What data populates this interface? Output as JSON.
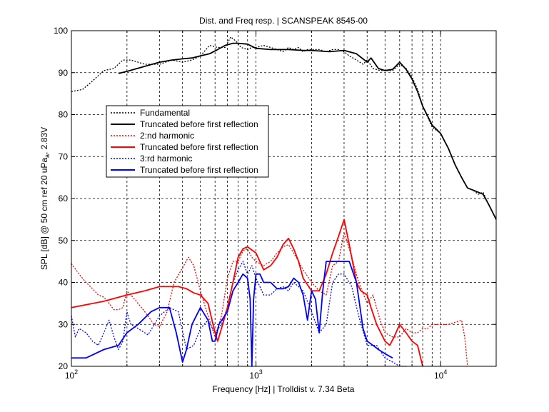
{
  "chart_data": {
    "type": "line",
    "title": "Dist. and Freq resp.  | SCANSPEAK 8545-00",
    "xlabel": "Frequency [Hz] | Trolldist v. 7.34 Beta",
    "ylabel_parts": [
      "SPL [dB] @ 50 cm ref 20 uPa",
      "a",
      ", 2.83V"
    ],
    "xscale": "log",
    "xlim": [
      100,
      20000
    ],
    "ylim": [
      20,
      100
    ],
    "grid": true,
    "legend_position": "upper-left",
    "x_tick_labels": [
      {
        "x": 100,
        "base": "10",
        "exp": "2"
      },
      {
        "x": 1000,
        "base": "10",
        "exp": "3"
      },
      {
        "x": 10000,
        "base": "10",
        "exp": "4"
      }
    ],
    "y_ticks": [
      20,
      30,
      40,
      50,
      60,
      70,
      80,
      90,
      100
    ],
    "series": [
      {
        "name": "Fundamental",
        "color": "#000000",
        "style": "dotted",
        "x": [
          100,
          115,
          130,
          150,
          170,
          190,
          210,
          250,
          300,
          350,
          400,
          450,
          500,
          560,
          620,
          680,
          730,
          780,
          830,
          900,
          950,
          1000,
          1100,
          1200,
          1300,
          1400,
          1500,
          1600,
          1700,
          1800,
          1900,
          2000,
          2200,
          2400,
          2600,
          2800,
          3000,
          3200,
          3500,
          3800,
          4000,
          4300,
          4700,
          5000,
          5500,
          6000,
          6500,
          7000,
          7500,
          8000,
          9000,
          10000,
          11000,
          12000,
          13000,
          14000,
          15000,
          16000,
          17000,
          18000,
          19000,
          20000
        ],
        "y": [
          85.5,
          86,
          88,
          90.5,
          91,
          93,
          93,
          92,
          92,
          93,
          92.5,
          93,
          94,
          96.5,
          96,
          96,
          98.5,
          97.5,
          96,
          95.5,
          96,
          96,
          96.5,
          96,
          95.5,
          95,
          96,
          95.5,
          96,
          95,
          95.5,
          95.5,
          95.5,
          95,
          95.5,
          95.5,
          95,
          94,
          93,
          92,
          93,
          91,
          90.5,
          90.5,
          90.5,
          92,
          91,
          89,
          86,
          82,
          77,
          75.5,
          72,
          68,
          65,
          62.5,
          62,
          61,
          61.5,
          59,
          57,
          55
        ]
      },
      {
        "name": "Truncated before first reflection",
        "color": "#000000",
        "style": "solid",
        "x": [
          180,
          200,
          250,
          300,
          350,
          400,
          450,
          500,
          560,
          620,
          680,
          750,
          800,
          900,
          1000,
          1200,
          1500,
          1800,
          2000,
          2500,
          3000,
          3500,
          4000,
          4200,
          4600,
          5000,
          5500,
          6000,
          6500,
          7000,
          7500,
          8000,
          9000,
          10000,
          11000,
          12000,
          13000,
          14000,
          15000,
          16000,
          17000,
          18000,
          19000,
          20000
        ],
        "y": [
          89.8,
          90.3,
          91.5,
          92.5,
          93,
          93.3,
          93.5,
          94,
          94.5,
          95.5,
          96.5,
          97,
          97,
          96.8,
          95.8,
          95.5,
          95.5,
          95.3,
          95.3,
          95,
          95.3,
          94.5,
          92.5,
          93.5,
          91,
          90.5,
          90.8,
          92.5,
          90.8,
          88.5,
          85.5,
          82,
          77.5,
          75.5,
          72,
          68,
          65,
          62.5,
          62,
          61.5,
          61,
          59,
          57,
          55
        ]
      },
      {
        "name": "2:nd harmonic",
        "color": "#ff0000",
        "style": "dotted",
        "x": [
          100,
          110,
          120,
          130,
          140,
          150,
          160,
          170,
          180,
          190,
          200,
          220,
          250,
          280,
          300,
          330,
          360,
          400,
          430,
          460,
          500,
          550,
          600,
          650,
          700,
          750,
          800,
          850,
          900,
          950,
          1000,
          1100,
          1200,
          1300,
          1400,
          1500,
          1600,
          1700,
          1800,
          2000,
          2200,
          2400,
          2600,
          2800,
          3000,
          3300,
          3600,
          4000,
          4300,
          4700,
          5000,
          5500,
          6000,
          6500,
          7000,
          7500,
          8000,
          8500,
          9000,
          10000,
          11000,
          12000,
          13000,
          13500,
          14000
        ],
        "y": [
          44.5,
          42,
          40,
          38.5,
          37,
          36.5,
          35,
          33.5,
          33.5,
          34,
          38,
          36,
          33,
          30,
          29.5,
          33,
          40,
          43.5,
          46,
          44,
          38,
          32,
          27,
          32,
          41,
          45,
          45,
          47.5,
          48,
          46,
          45,
          44,
          45,
          47,
          48.5,
          49,
          47,
          45,
          43,
          40,
          38,
          37,
          44,
          45,
          52,
          46,
          40,
          35,
          37,
          31,
          28,
          27,
          27,
          29,
          28,
          28,
          29,
          29,
          30,
          30,
          30,
          30.5,
          31,
          27,
          20
        ]
      },
      {
        "name": "Truncated before first reflection",
        "color": "#ff0000",
        "style": "solid",
        "x": [
          100,
          150,
          200,
          250,
          300,
          350,
          380,
          420,
          460,
          500,
          550,
          600,
          620,
          660,
          700,
          750,
          800,
          850,
          900,
          1000,
          1100,
          1200,
          1300,
          1400,
          1500,
          1600,
          1700,
          1800,
          2000,
          2200,
          2400,
          2600,
          2800,
          3000,
          3200,
          3500,
          3700,
          4000,
          4200,
          4500,
          5000,
          5300,
          5600,
          6000,
          6500,
          7000,
          7500,
          8000
        ],
        "y": [
          34,
          35.5,
          37,
          38,
          39,
          39,
          39,
          38.5,
          37.5,
          37,
          35,
          28,
          26,
          30,
          34,
          40,
          46,
          48,
          48.5,
          47,
          43,
          44,
          46,
          49,
          50.5,
          48,
          45,
          41,
          38,
          38,
          42,
          47,
          51,
          55,
          49,
          40,
          38,
          37,
          34,
          30,
          26,
          25,
          27,
          30,
          28,
          26,
          25,
          20
        ]
      },
      {
        "name": "3:rd harmonic",
        "color": "#0000ff",
        "style": "dotted",
        "x": [
          100,
          105,
          110,
          120,
          130,
          140,
          150,
          160,
          170,
          180,
          190,
          200,
          210,
          230,
          260,
          300,
          340,
          380,
          420,
          460,
          500,
          550,
          600,
          650,
          700,
          750,
          800,
          850,
          900,
          950,
          1000,
          1100,
          1200,
          1300,
          1400,
          1500,
          1600,
          1800,
          2000,
          2200,
          2400,
          2600,
          2800,
          3000,
          3300,
          3600,
          4000,
          4500,
          5000,
          5500,
          6000,
          6500
        ],
        "y": [
          32,
          27,
          29,
          28,
          26,
          25,
          28,
          31,
          27,
          24,
          26,
          33,
          30,
          29,
          27.5,
          32,
          34,
          33,
          24,
          25,
          29,
          31,
          28,
          30,
          34,
          40,
          43,
          45,
          42,
          44,
          41,
          37,
          37,
          38.5,
          39,
          38,
          40,
          38,
          33,
          28,
          30,
          40,
          42,
          42,
          39,
          32,
          25,
          25,
          22,
          21,
          20,
          20
        ]
      },
      {
        "name": "Truncated before first reflection",
        "color": "#0000ff",
        "style": "solid",
        "x": [
          100,
          120,
          150,
          180,
          200,
          230,
          270,
          300,
          340,
          370,
          400,
          420,
          450,
          500,
          550,
          580,
          600,
          630,
          700,
          750,
          800,
          850,
          900,
          930,
          950,
          970,
          1000,
          1050,
          1100,
          1200,
          1300,
          1400,
          1500,
          1600,
          1700,
          1800,
          1900,
          2000,
          2100,
          2200,
          2300,
          2400,
          2600,
          2800,
          3000,
          3200,
          3500,
          3800,
          4000,
          4300,
          4600,
          5000,
          5500
        ],
        "y": [
          22,
          22,
          24,
          25,
          28,
          30,
          33,
          34,
          34,
          28,
          21,
          24,
          30,
          34,
          31,
          26,
          26,
          30,
          33,
          38,
          40,
          42,
          41,
          36,
          20,
          36,
          42,
          42,
          40,
          40,
          38.5,
          38.5,
          39,
          41,
          40,
          37,
          31,
          38,
          36,
          28,
          38,
          45,
          45,
          45,
          45,
          45,
          40,
          29,
          26,
          25,
          24,
          23,
          22
        ]
      }
    ]
  }
}
